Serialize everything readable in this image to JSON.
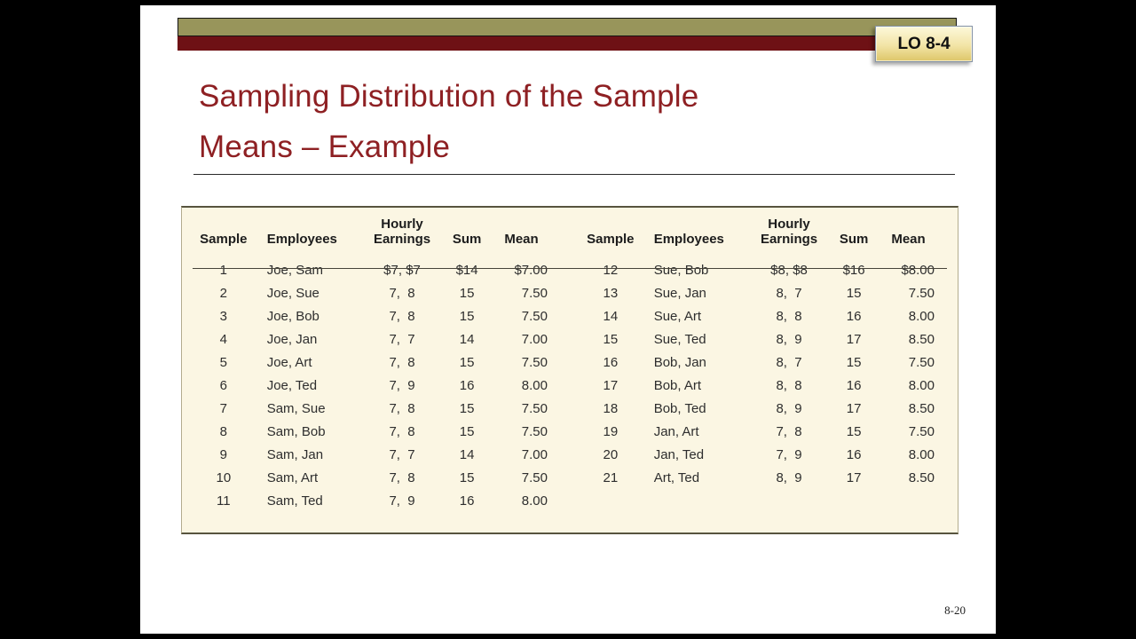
{
  "slide": {
    "lo_badge": "LO 8-4",
    "title_lines": [
      "Sampling Distribution of the Sample",
      "Means – Example"
    ],
    "page_number": "8-20"
  },
  "table": {
    "header": {
      "sample": "Sample",
      "employees": "Employees",
      "hourly_top": "Hourly",
      "hourly_bottom": "Earnings",
      "sum": "Sum",
      "mean": "Mean"
    },
    "left_rows": [
      [
        "1",
        "Joe, Sam",
        "$7, $7",
        "$14",
        "$7.00"
      ],
      [
        "2",
        "Joe, Sue",
        "7,  8",
        "15",
        "7.50"
      ],
      [
        "3",
        "Joe, Bob",
        "7,  8",
        "15",
        "7.50"
      ],
      [
        "4",
        "Joe, Jan",
        "7,  7",
        "14",
        "7.00"
      ],
      [
        "5",
        "Joe, Art",
        "7,  8",
        "15",
        "7.50"
      ],
      [
        "6",
        "Joe, Ted",
        "7,  9",
        "16",
        "8.00"
      ],
      [
        "7",
        "Sam, Sue",
        "7,  8",
        "15",
        "7.50"
      ],
      [
        "8",
        "Sam, Bob",
        "7,  8",
        "15",
        "7.50"
      ],
      [
        "9",
        "Sam, Jan",
        "7,  7",
        "14",
        "7.00"
      ],
      [
        "10",
        "Sam, Art",
        "7,  8",
        "15",
        "7.50"
      ],
      [
        "11",
        "Sam, Ted",
        "7,  9",
        "16",
        "8.00"
      ]
    ],
    "right_rows": [
      [
        "12",
        "Sue, Bob",
        "$8, $8",
        "$16",
        "$8.00"
      ],
      [
        "13",
        "Sue, Jan",
        "8,  7",
        "15",
        "7.50"
      ],
      [
        "14",
        "Sue, Art",
        "8,  8",
        "16",
        "8.00"
      ],
      [
        "15",
        "Sue, Ted",
        "8,  9",
        "17",
        "8.50"
      ],
      [
        "16",
        "Bob, Jan",
        "8,  7",
        "15",
        "7.50"
      ],
      [
        "17",
        "Bob, Art",
        "8,  8",
        "16",
        "8.00"
      ],
      [
        "18",
        "Bob, Ted",
        "8,  9",
        "17",
        "8.50"
      ],
      [
        "19",
        "Jan, Art",
        "7,  8",
        "15",
        "7.50"
      ],
      [
        "20",
        "Jan, Ted",
        "7,  9",
        "16",
        "8.00"
      ],
      [
        "21",
        "Art, Ted",
        "8,  9",
        "17",
        "8.50"
      ]
    ]
  }
}
